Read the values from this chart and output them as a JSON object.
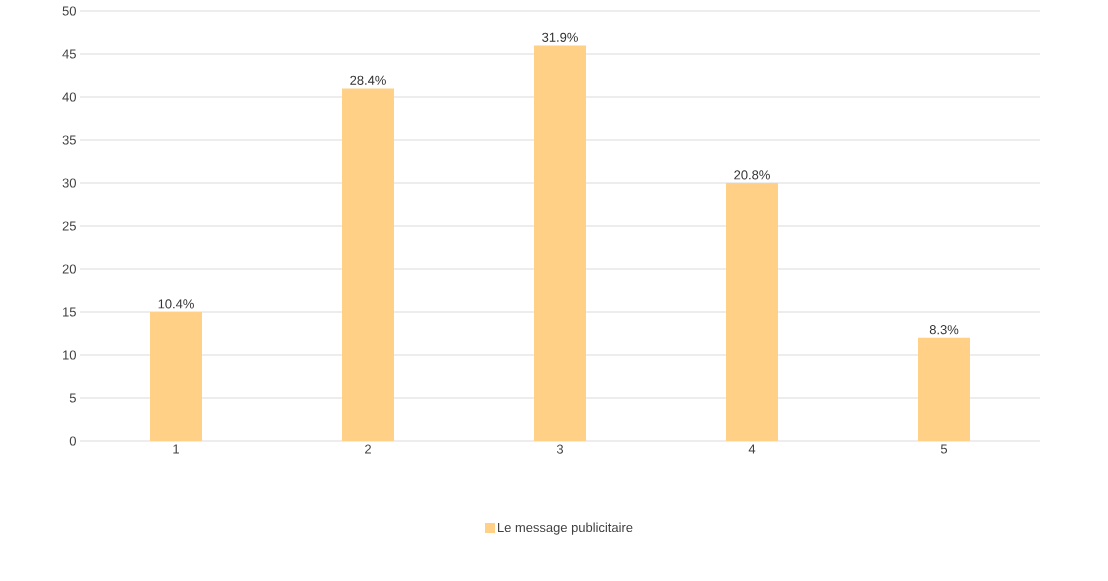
{
  "chart_data": {
    "type": "bar",
    "categories": [
      "1",
      "2",
      "3",
      "4",
      "5"
    ],
    "series": [
      {
        "name": "Le message publicitaire",
        "color": "#ffd085",
        "values": [
          15,
          41,
          46,
          30,
          12
        ]
      }
    ],
    "annotations": [
      {
        "text": "10.4%",
        "x": "1",
        "y": 15
      },
      {
        "text": "28.4%",
        "x": "2",
        "y": 41
      },
      {
        "text": "31.9%",
        "x": "3",
        "y": 46
      },
      {
        "text": "20.8%",
        "x": "4",
        "y": 30
      },
      {
        "text": "8.3%",
        "x": "5",
        "y": 12
      }
    ],
    "ylim": [
      0,
      50
    ],
    "yticks": [
      0,
      5,
      10,
      15,
      20,
      25,
      30,
      35,
      40,
      45,
      50
    ],
    "grid": "y",
    "legend": "bottom"
  }
}
